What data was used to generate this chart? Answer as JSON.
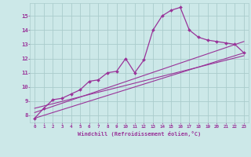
{
  "xlabel": "Windchill (Refroidissement éolien,°C)",
  "bg_color": "#cce8e8",
  "grid_color": "#aacccc",
  "line_color": "#993399",
  "xlim": [
    -0.5,
    23.5
  ],
  "ylim": [
    7.5,
    15.9
  ],
  "xticks": [
    0,
    1,
    2,
    3,
    4,
    5,
    6,
    7,
    8,
    9,
    10,
    11,
    12,
    13,
    14,
    15,
    16,
    17,
    18,
    19,
    20,
    21,
    22,
    23
  ],
  "yticks": [
    8,
    9,
    10,
    11,
    12,
    13,
    14,
    15
  ],
  "main_x": [
    0,
    1,
    2,
    3,
    4,
    5,
    6,
    7,
    8,
    9,
    10,
    11,
    12,
    13,
    14,
    15,
    16,
    17,
    18,
    19,
    20,
    21,
    22,
    23
  ],
  "main_y": [
    7.8,
    8.5,
    9.1,
    9.2,
    9.5,
    9.8,
    10.4,
    10.5,
    11.0,
    11.1,
    12.0,
    11.0,
    11.9,
    14.0,
    15.0,
    15.4,
    15.6,
    14.0,
    13.5,
    13.3,
    13.2,
    13.1,
    13.0,
    12.4
  ],
  "trend1_x": [
    0,
    23
  ],
  "trend1_y": [
    7.8,
    12.4
  ],
  "trend2_x": [
    0,
    23
  ],
  "trend2_y": [
    8.2,
    13.2
  ],
  "trend3_x": [
    0,
    23
  ],
  "trend3_y": [
    8.5,
    12.2
  ]
}
